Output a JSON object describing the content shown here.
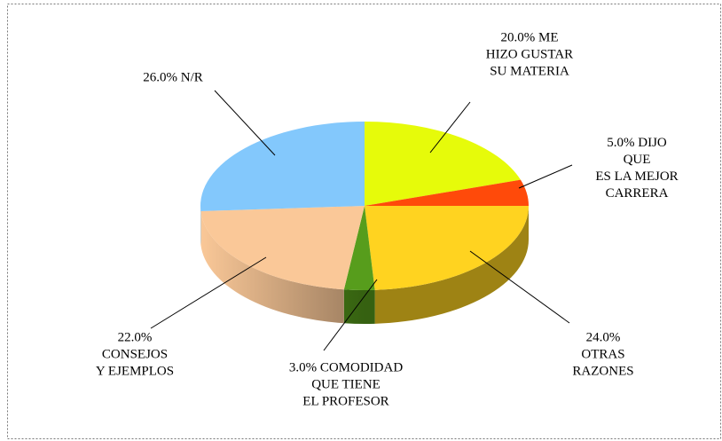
{
  "chart_data": {
    "type": "pie3d",
    "categories": [
      "ME\nHIZO GUSTAR\nSU MATERIA",
      "DIJO QUE\nES LA MEJOR\nCARRERA",
      "OTRAS\nRAZONES",
      "COMODIDAD\nQUE TIENE\nEL PROFESOR",
      "CONSEJOS\nY EJEMPLOS",
      "N/R"
    ],
    "values": [
      20,
      5,
      24,
      3,
      22,
      26
    ],
    "value_labels": [
      "20.0%",
      "5.0%",
      "24.0%",
      "3.0%",
      "22.0%",
      "26.0%"
    ],
    "colors": [
      "#e6fb0a",
      "#ff4a0a",
      "#ffd320",
      "#579d1c",
      "#fac898",
      "#83c8fc"
    ]
  }
}
